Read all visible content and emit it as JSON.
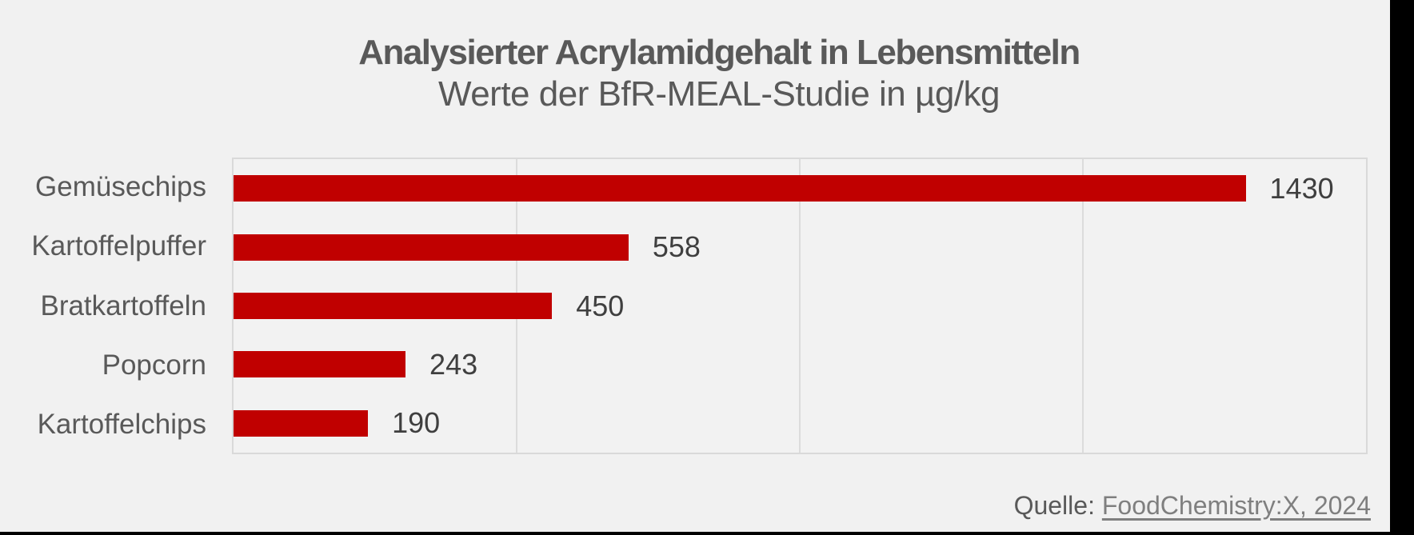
{
  "header": {
    "title": "Analysierter Acrylamidgehalt in Lebensmitteln",
    "subtitle": "Werte der BfR-MEAL-Studie in µg/kg"
  },
  "chart_data": {
    "type": "bar",
    "orientation": "horizontal",
    "title": "Analysierter Acrylamidgehalt in Lebensmitteln",
    "subtitle": "Werte der BfR-MEAL-Studie in µg/kg",
    "unit": "µg/kg",
    "categories": [
      "Gemüsechips",
      "Kartoffelpuffer",
      "Bratkartoffeln",
      "Popcorn",
      "Kartoffelchips"
    ],
    "values": [
      1430,
      558,
      450,
      243,
      190
    ],
    "xlabel": "",
    "ylabel": "",
    "xlim": [
      0,
      1600
    ],
    "x_grid_interval": 400,
    "grid": true,
    "value_labels_shown": true,
    "legend": "none"
  },
  "source": {
    "prefix": "Quelle: ",
    "link_text": "FoodChemistry:X, 2024"
  },
  "colors": {
    "bar": "#c00000",
    "background": "#f1f1f1",
    "outer_frame": "#000000",
    "title_text": "#595959",
    "category_text": "#595959",
    "value_text": "#3f3f3f",
    "plot_border": "#d9d9d9",
    "gridline": "#dcdcdc",
    "source_prefix_text": "#595959",
    "source_link_text": "#7f7f7f"
  }
}
